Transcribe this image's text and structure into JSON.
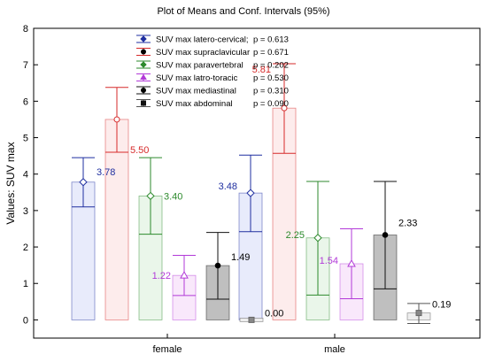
{
  "chart_data": {
    "type": "bar",
    "title": "Plot of Means and Conf. Intervals (95%)",
    "ylabel": "Values: SUV max",
    "xlabel": "",
    "ylim": [
      -0.5,
      8
    ],
    "yticks": [
      0,
      1,
      2,
      3,
      4,
      5,
      6,
      7,
      8
    ],
    "categories": [
      "female",
      "male"
    ],
    "legend_position": "top-center",
    "series": [
      {
        "name": "SUV max latero-cervical;",
        "p_label": "p = 0.613",
        "color": "#1f2fa0",
        "fill": "#e8ebfb",
        "marker": "diamond",
        "values": [
          3.78,
          3.48
        ],
        "ci_low": [
          3.1,
          2.42
        ],
        "ci_high": [
          4.45,
          4.52
        ],
        "labels": [
          "3.78",
          "3.48"
        ]
      },
      {
        "name": "SUV max supraclavicular",
        "p_label": "p = 0.671",
        "color": "#d62a2a",
        "fill": "#fdecec",
        "marker": "circle",
        "values": [
          5.5,
          5.81
        ],
        "ci_low": [
          4.6,
          4.57
        ],
        "ci_high": [
          6.38,
          7.03
        ],
        "labels": [
          "5.50",
          "5.81"
        ]
      },
      {
        "name": "SUV max paravertebral",
        "p_label": "p = 0.202",
        "color": "#2c8a2c",
        "fill": "#eaf6ea",
        "marker": "diamond",
        "values": [
          3.4,
          2.25
        ],
        "ci_low": [
          2.35,
          0.68
        ],
        "ci_high": [
          4.45,
          3.8
        ],
        "labels": [
          "3.40",
          "2.25"
        ]
      },
      {
        "name": "SUV max latro-toracic",
        "p_label": "p = 0.530",
        "color": "#b23ad8",
        "fill": "#f9e8fb",
        "marker": "triangle",
        "values": [
          1.22,
          1.54
        ],
        "ci_low": [
          0.67,
          0.58
        ],
        "ci_high": [
          1.77,
          2.5
        ],
        "labels": [
          "1.22",
          "1.54"
        ]
      },
      {
        "name": "SUV max mediastinal",
        "p_label": "p = 0.310",
        "color": "#111111",
        "fill": "#bfbfbf",
        "marker": "circle",
        "values": [
          1.49,
          2.33
        ],
        "ci_low": [
          0.57,
          0.85
        ],
        "ci_high": [
          2.4,
          3.8
        ],
        "labels": [
          "1.49",
          "2.33"
        ]
      },
      {
        "name": "SUV max abdominal",
        "p_label": "p = 0.090",
        "color": "#555555",
        "fill": "#eeeeee",
        "marker": "square",
        "values": [
          0.0,
          0.19
        ],
        "ci_low": [
          0.0,
          -0.1
        ],
        "ci_high": [
          0.0,
          0.45
        ],
        "labels": [
          "0.00",
          "0.19"
        ]
      }
    ]
  }
}
